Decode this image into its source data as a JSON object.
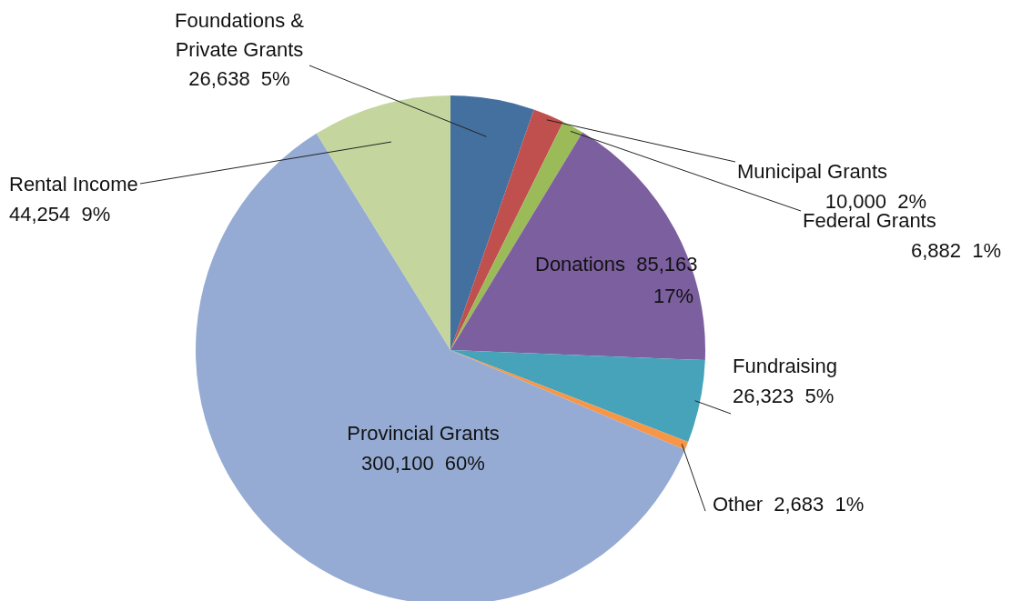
{
  "chart_data": {
    "type": "pie",
    "categories": [
      "Foundations & Private Grants",
      "Municipal Grants",
      "Federal Grants",
      "Donations",
      "Fundraising",
      "Other",
      "Provincial Grants",
      "Rental Income"
    ],
    "values": [
      26638,
      10000,
      6882,
      85163,
      26323,
      2683,
      300100,
      44254
    ],
    "value_labels": [
      "26,638  5%",
      "10,000  2%",
      "6,882  1%",
      "85,163  17%",
      "26,323  5%",
      "2,683  1%",
      "300,100  60%",
      "44,254  9%"
    ],
    "colors": [
      "#44709f",
      "#c0504d",
      "#9bbb59",
      "#7c5f9e",
      "#46a3b9",
      "#f79646",
      "#95abd3",
      "#c4d59e"
    ]
  }
}
